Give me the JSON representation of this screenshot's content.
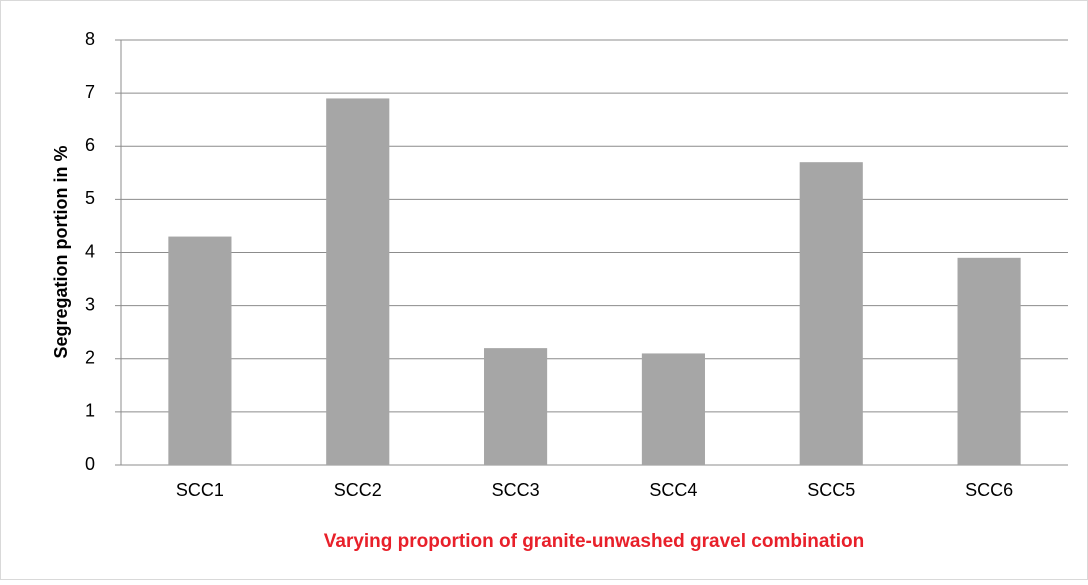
{
  "chart_data": {
    "type": "bar",
    "categories": [
      "SCC1",
      "SCC2",
      "SCC3",
      "SCC4",
      "SCC5",
      "SCC6"
    ],
    "values": [
      4.3,
      6.9,
      2.2,
      2.1,
      5.7,
      3.9
    ],
    "color": "#a6a6a6",
    "ylim": [
      0,
      8
    ],
    "yticks": [
      0,
      1,
      2,
      3,
      4,
      5,
      6,
      7,
      8
    ],
    "grid": true,
    "y_label": "Segregation portion in %",
    "x_label": "Varying proportion of granite-unwashed gravel combination"
  }
}
